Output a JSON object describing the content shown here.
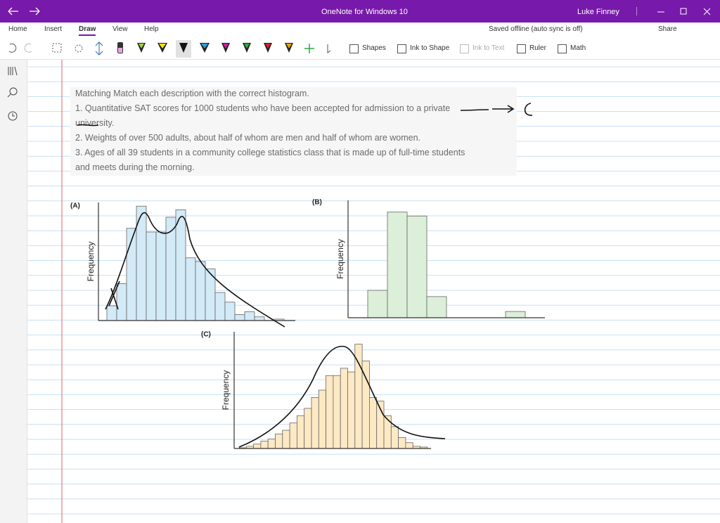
{
  "window": {
    "title": "OneNote for Windows 10",
    "user": "Luke Finney"
  },
  "menu": {
    "tabs": [
      "Home",
      "Insert",
      "Draw",
      "View",
      "Help"
    ],
    "status": "Saved offline (auto sync is off)",
    "share": "Share"
  },
  "toolbar": {
    "tools": [
      "Shapes",
      "Ink to Shape",
      "Ink to Text",
      "Ruler",
      "Math"
    ]
  },
  "note": {
    "lines": [
      "Matching Match each description with the correct histogram.",
      "1. Quantitative SAT scores for 1000 students who have been accepted for admission to a private",
      "university.",
      "2. Weights of over 500 adults, about half of whom are men and half of whom are women.",
      "3. Ages of all 39 students in a community college statistics class that is made up of full-time students",
      "and meets during the morning."
    ]
  },
  "charts": [
    {
      "type": "histogram",
      "panel": "(A)",
      "ylabel": "Frequency",
      "color": "#d3eaf7",
      "values": [
        20,
        50,
        125,
        155,
        120,
        120,
        140,
        150,
        85,
        80,
        70,
        38,
        25,
        8,
        12,
        5,
        0,
        2
      ],
      "ylim": [
        0,
        160
      ]
    },
    {
      "type": "histogram",
      "panel": "(B)",
      "ylabel": "Frequency",
      "color": "#dcefd9",
      "values": [
        35,
        135,
        130,
        27,
        0,
        0,
        0,
        8
      ],
      "ylim": [
        0,
        150
      ]
    },
    {
      "type": "histogram",
      "panel": "(C)",
      "ylabel": "Frequency",
      "color": "#fde9c4",
      "values": [
        1,
        3,
        6,
        10,
        13,
        20,
        25,
        35,
        45,
        55,
        70,
        80,
        100,
        100,
        110,
        105,
        143,
        120,
        70,
        65,
        45,
        30,
        15,
        8,
        3,
        2
      ],
      "ylim": [
        0,
        160
      ]
    }
  ]
}
